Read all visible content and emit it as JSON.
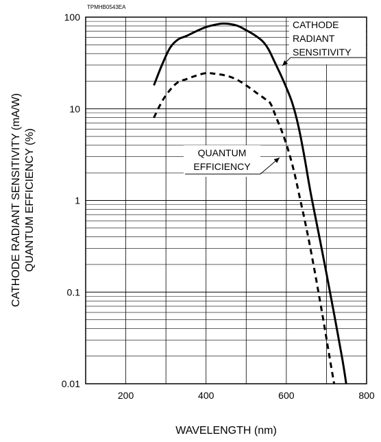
{
  "chart_data": {
    "type": "line",
    "doc_code": "TPMHB0543EA",
    "xlabel": "WAVELENGTH (nm)",
    "ylabel_line1": "CATHODE RADIANT SENSITIVITY (mA/W)",
    "ylabel_line2": "QUANTUM EFFICIENCY (%)",
    "xlim": [
      100,
      800
    ],
    "ylim": [
      0.01,
      100
    ],
    "yscale": "log",
    "grid": true,
    "x_ticks": [
      {
        "value": 200,
        "label": "200"
      },
      {
        "value": 400,
        "label": "400"
      },
      {
        "value": 600,
        "label": "600"
      },
      {
        "value": 800,
        "label": "800"
      }
    ],
    "y_ticks": [
      {
        "value": 100,
        "label": "100"
      },
      {
        "value": 10,
        "label": "10"
      },
      {
        "value": 1,
        "label": "1"
      },
      {
        "value": 0.1,
        "label": "0.1"
      },
      {
        "value": 0.01,
        "label": "0.01"
      }
    ],
    "series": [
      {
        "name": "CATHODE RADIANT SENSITIVITY",
        "label_lines": [
          "CATHODE",
          "RADIANT",
          "SENSITIVITY"
        ],
        "style": "solid",
        "color": "#000000",
        "x": [
          270,
          290,
          310,
          330,
          350,
          375,
          400,
          425,
          440,
          460,
          480,
          500,
          520,
          540,
          555,
          570,
          585,
          600,
          615,
          630,
          645,
          660,
          680,
          700,
          720,
          740,
          750
        ],
        "y": [
          18,
          30,
          46,
          57,
          62,
          70,
          78,
          83,
          85,
          84,
          80,
          72,
          64,
          55,
          45,
          33,
          24,
          17,
          11.5,
          6.5,
          3.0,
          1.25,
          0.45,
          0.16,
          0.055,
          0.018,
          0.0095
        ]
      },
      {
        "name": "QUANTUM EFFICIENCY",
        "label_lines": [
          "QUANTUM",
          "EFFICIENCY"
        ],
        "style": "dashed",
        "color": "#000000",
        "x": [
          270,
          290,
          310,
          330,
          350,
          375,
          400,
          425,
          450,
          475,
          500,
          525,
          545,
          560,
          575,
          590,
          605,
          620,
          635,
          650,
          665,
          680,
          695,
          710,
          720
        ],
        "y": [
          8,
          12,
          16,
          19.5,
          21,
          23,
          24.5,
          24,
          23,
          21,
          18,
          15,
          13,
          11.5,
          8,
          5.5,
          3.5,
          2.0,
          1.0,
          0.5,
          0.23,
          0.1,
          0.042,
          0.017,
          0.0095
        ]
      }
    ]
  }
}
